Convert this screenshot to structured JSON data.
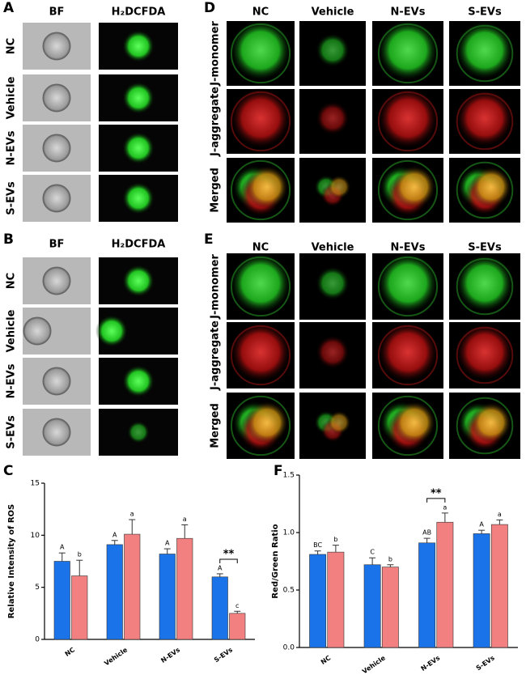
{
  "panels": [
    {
      "label": "A",
      "columns": [
        "BF",
        "H₂DCFDA"
      ],
      "rows": [
        "NC",
        "Vehicle",
        "N-EVs",
        "S-EVs"
      ]
    },
    {
      "label": "B",
      "columns": [
        "BF",
        "H₂DCFDA"
      ],
      "rows": [
        "NC",
        "Vehicle",
        "N-EVs",
        "S-EVs"
      ]
    },
    {
      "label": "D",
      "columns": [
        "NC",
        "Vehicle",
        "N-EVs",
        "S-EVs"
      ],
      "rows": [
        "J-monomer",
        "J-aggregate",
        "Merged"
      ]
    },
    {
      "label": "E",
      "columns": [
        "NC",
        "Vehicle",
        "N-EVs",
        "S-EVs"
      ],
      "rows": [
        "J-monomer",
        "J-aggregate",
        "Merged"
      ]
    }
  ],
  "chart_data": [
    {
      "type": "bar",
      "panel": "C",
      "ylabel": "Relative Intensity of ROS",
      "categories": [
        "NC",
        "Vehicle",
        "N-EVs",
        "S-EVs"
      ],
      "series": [
        {
          "color": "#1a73e8",
          "values": [
            7.5,
            9.1,
            8.2,
            6.0
          ],
          "errors": [
            0.8,
            0.4,
            0.5,
            0.3
          ],
          "letters": [
            "A",
            "A",
            "A",
            "A"
          ]
        },
        {
          "color": "#f28080",
          "values": [
            6.1,
            10.1,
            9.7,
            2.5
          ],
          "errors": [
            1.5,
            1.4,
            1.3,
            0.2
          ],
          "letters": [
            "b",
            "a",
            "a",
            "c"
          ]
        }
      ],
      "ylim": [
        0,
        15
      ],
      "yticks": [
        0,
        5,
        10,
        15
      ],
      "significance": [
        {
          "category": "S-EVs",
          "text": "**"
        }
      ]
    },
    {
      "type": "bar",
      "panel": "F",
      "ylabel": "Red/Green Ratio",
      "categories": [
        "NC",
        "Vehicle",
        "N-EVs",
        "S-EVs"
      ],
      "series": [
        {
          "color": "#1a73e8",
          "values": [
            0.81,
            0.72,
            0.91,
            0.99
          ],
          "errors": [
            0.03,
            0.06,
            0.04,
            0.03
          ],
          "letters": [
            "BC",
            "C",
            "AB",
            "A"
          ]
        },
        {
          "color": "#f28080",
          "values": [
            0.83,
            0.7,
            1.09,
            1.07
          ],
          "errors": [
            0.06,
            0.02,
            0.08,
            0.04
          ],
          "letters": [
            "b",
            "b",
            "a",
            "a"
          ]
        }
      ],
      "ylim": [
        0,
        1.5
      ],
      "yticks": [
        {
          "value": 0,
          "label": "0.0"
        },
        {
          "value": 0.5,
          "label": "0.5"
        },
        {
          "value": 1,
          "label": "1.0"
        },
        {
          "value": 1.5,
          "label": "1.5"
        }
      ],
      "significance": [
        {
          "category": "N-EVs",
          "text": "**"
        }
      ]
    }
  ]
}
